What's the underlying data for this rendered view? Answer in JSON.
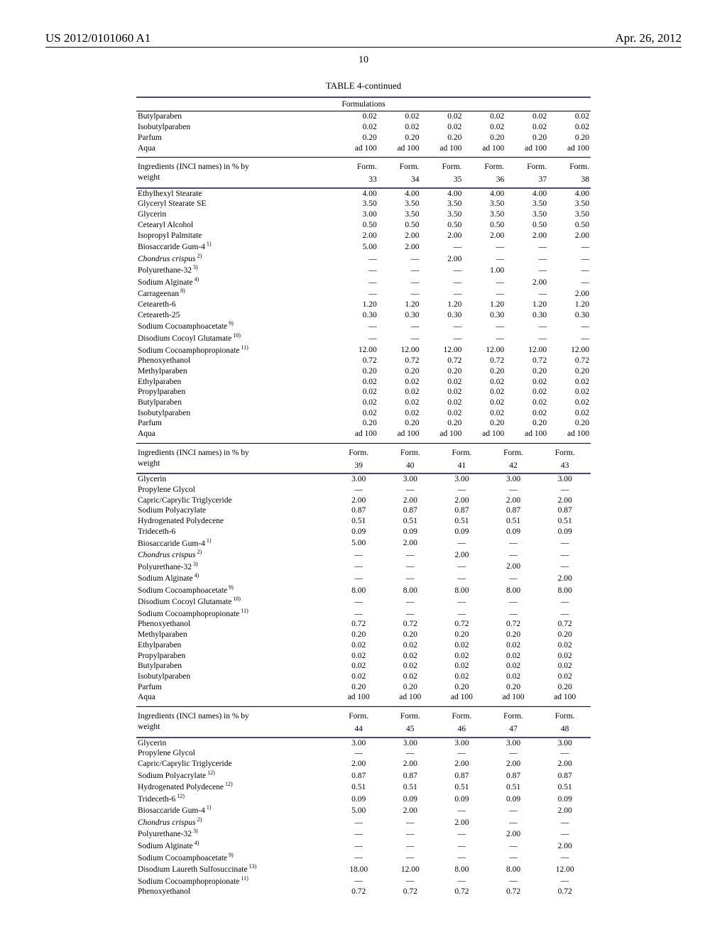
{
  "header": {
    "left": "US 2012/0101060 A1",
    "right": "Apr. 26, 2012",
    "page": "10"
  },
  "tableTitle": "TABLE 4-continued",
  "subheading": "Formulations",
  "labels": {
    "ingrHeader": "Ingredients (INCI names) in % by weight",
    "formPrefix": "Form."
  },
  "sec1": {
    "cols": 6,
    "rows": [
      {
        "n": "Butylparaben",
        "v": [
          "0.02",
          "0.02",
          "0.02",
          "0.02",
          "0.02",
          "0.02"
        ]
      },
      {
        "n": "Isobutylparaben",
        "v": [
          "0.02",
          "0.02",
          "0.02",
          "0.02",
          "0.02",
          "0.02"
        ]
      },
      {
        "n": "Parfum",
        "v": [
          "0.20",
          "0.20",
          "0.20",
          "0.20",
          "0.20",
          "0.20"
        ]
      },
      {
        "n": "Aqua",
        "v": [
          "ad 100",
          "ad 100",
          "ad 100",
          "ad 100",
          "ad 100",
          "ad 100"
        ]
      }
    ]
  },
  "sec2": {
    "forms": [
      "33",
      "34",
      "35",
      "36",
      "37",
      "38"
    ],
    "rows": [
      {
        "n": "Ethylhexyl Stearate",
        "v": [
          "4.00",
          "4.00",
          "4.00",
          "4.00",
          "4.00",
          "4.00"
        ]
      },
      {
        "n": "Glyceryl Stearate SE",
        "v": [
          "3.50",
          "3.50",
          "3.50",
          "3.50",
          "3.50",
          "3.50"
        ]
      },
      {
        "n": "Glycerin",
        "v": [
          "3.00",
          "3.50",
          "3.50",
          "3.50",
          "3.50",
          "3.50"
        ]
      },
      {
        "n": "Cetearyl Alcohol",
        "v": [
          "0.50",
          "0.50",
          "0.50",
          "0.50",
          "0.50",
          "0.50"
        ]
      },
      {
        "n": "Isopropyl Palmitate",
        "v": [
          "2.00",
          "2.00",
          "2.00",
          "2.00",
          "2.00",
          "2.00"
        ]
      },
      {
        "n": "Biosaccaride Gum-4",
        "sup": "1)",
        "v": [
          "5.00",
          "2.00",
          "—",
          "—",
          "—",
          "—"
        ]
      },
      {
        "n": "Chondrus crispus",
        "sup": "2)",
        "ital": true,
        "v": [
          "—",
          "—",
          "2.00",
          "—",
          "—",
          "—"
        ]
      },
      {
        "n": "Polyurethane-32",
        "sup": "3)",
        "v": [
          "—",
          "—",
          "—",
          "1.00",
          "—",
          "—"
        ]
      },
      {
        "n": "Sodium Alginate",
        "sup": "4)",
        "v": [
          "—",
          "—",
          "—",
          "—",
          "2.00",
          "—"
        ]
      },
      {
        "n": "Carrageenan",
        "sup": "8)",
        "v": [
          "—",
          "—",
          "—",
          "—",
          "—",
          "2.00"
        ]
      },
      {
        "n": "Ceteareth-6",
        "v": [
          "1.20",
          "1.20",
          "1.20",
          "1.20",
          "1.20",
          "1.20"
        ]
      },
      {
        "n": "Ceteareth-25",
        "v": [
          "0.30",
          "0.30",
          "0.30",
          "0.30",
          "0.30",
          "0.30"
        ]
      },
      {
        "n": "Sodium Cocoamphoacetate",
        "sup": "9)",
        "v": [
          "—",
          "—",
          "—",
          "—",
          "—",
          "—"
        ]
      },
      {
        "n": "Disodium Cocoyl Glutamate",
        "sup": "10)",
        "v": [
          "—",
          "—",
          "—",
          "—",
          "—",
          "—"
        ]
      },
      {
        "n": "Sodium Cocoamphopropionate",
        "sup": "11)",
        "v": [
          "12.00",
          "12.00",
          "12.00",
          "12.00",
          "12.00",
          "12.00"
        ]
      },
      {
        "n": "Phenoxyethanol",
        "v": [
          "0.72",
          "0.72",
          "0.72",
          "0.72",
          "0.72",
          "0.72"
        ]
      },
      {
        "n": "Methylparaben",
        "v": [
          "0.20",
          "0.20",
          "0.20",
          "0.20",
          "0.20",
          "0.20"
        ]
      },
      {
        "n": "Ethylparaben",
        "v": [
          "0.02",
          "0.02",
          "0.02",
          "0.02",
          "0.02",
          "0.02"
        ]
      },
      {
        "n": "Propylparaben",
        "v": [
          "0.02",
          "0.02",
          "0.02",
          "0.02",
          "0.02",
          "0.02"
        ]
      },
      {
        "n": "Butylparaben",
        "v": [
          "0.02",
          "0.02",
          "0.02",
          "0.02",
          "0.02",
          "0.02"
        ]
      },
      {
        "n": "Isobutylparaben",
        "v": [
          "0.02",
          "0.02",
          "0.02",
          "0.02",
          "0.02",
          "0.02"
        ]
      },
      {
        "n": "Parfum",
        "v": [
          "0.20",
          "0.20",
          "0.20",
          "0.20",
          "0.20",
          "0.20"
        ]
      },
      {
        "n": "Aqua",
        "v": [
          "ad 100",
          "ad 100",
          "ad 100",
          "ad 100",
          "ad 100",
          "ad 100"
        ]
      }
    ]
  },
  "sec3": {
    "forms": [
      "39",
      "40",
      "41",
      "42",
      "43"
    ],
    "rows": [
      {
        "n": "Glycerin",
        "v": [
          "3.00",
          "3.00",
          "3.00",
          "3.00",
          "3.00"
        ]
      },
      {
        "n": "Propylene Glycol",
        "v": [
          "—",
          "—",
          "—",
          "—",
          "—"
        ]
      },
      {
        "n": "Capric/Caprylic Triglyceride",
        "v": [
          "2.00",
          "2.00",
          "2.00",
          "2.00",
          "2.00"
        ]
      },
      {
        "n": "Sodium Polyacrylate",
        "v": [
          "0.87",
          "0.87",
          "0.87",
          "0.87",
          "0.87"
        ]
      },
      {
        "n": "Hydrogenated Polydecene",
        "v": [
          "0.51",
          "0.51",
          "0.51",
          "0.51",
          "0.51"
        ]
      },
      {
        "n": "Trideceth-6",
        "v": [
          "0.09",
          "0.09",
          "0.09",
          "0.09",
          "0.09"
        ]
      },
      {
        "n": "Biosaccaride Gum-4",
        "sup": "1)",
        "v": [
          "5.00",
          "2.00",
          "—",
          "—",
          "—"
        ]
      },
      {
        "n": "Chondrus crispus",
        "sup": "2)",
        "ital": true,
        "v": [
          "—",
          "—",
          "2.00",
          "—",
          "—"
        ]
      },
      {
        "n": "Polyurethane-32",
        "sup": "3)",
        "v": [
          "—",
          "—",
          "—",
          "2.00",
          "—"
        ]
      },
      {
        "n": "Sodium Alginate",
        "sup": "4)",
        "v": [
          "—",
          "—",
          "—",
          "—",
          "2.00"
        ]
      },
      {
        "n": "Sodium Cocoamphoacetate",
        "sup": "9)",
        "v": [
          "8.00",
          "8.00",
          "8.00",
          "8.00",
          "8.00"
        ]
      },
      {
        "n": "Disodium Cocoyl Glutamate",
        "sup": "10)",
        "v": [
          "—",
          "—",
          "—",
          "—",
          "—"
        ]
      },
      {
        "n": "Sodium Cocoamphopropionate",
        "sup": "11)",
        "v": [
          "—",
          "—",
          "—",
          "—",
          "—"
        ]
      },
      {
        "n": "Phenoxyethanol",
        "v": [
          "0.72",
          "0.72",
          "0.72",
          "0.72",
          "0.72"
        ]
      },
      {
        "n": "Methylparaben",
        "v": [
          "0.20",
          "0.20",
          "0.20",
          "0.20",
          "0.20"
        ]
      },
      {
        "n": "Ethylparaben",
        "v": [
          "0.02",
          "0.02",
          "0.02",
          "0.02",
          "0.02"
        ]
      },
      {
        "n": "Propylparaben",
        "v": [
          "0.02",
          "0.02",
          "0.02",
          "0.02",
          "0.02"
        ]
      },
      {
        "n": "Butylparaben",
        "v": [
          "0.02",
          "0.02",
          "0.02",
          "0.02",
          "0.02"
        ]
      },
      {
        "n": "Isobutylparaben",
        "v": [
          "0.02",
          "0.02",
          "0.02",
          "0.02",
          "0.02"
        ]
      },
      {
        "n": "Parfum",
        "v": [
          "0.20",
          "0.20",
          "0.20",
          "0.20",
          "0.20"
        ]
      },
      {
        "n": "Aqua",
        "v": [
          "ad 100",
          "ad 100",
          "ad 100",
          "ad 100",
          "ad 100"
        ]
      }
    ]
  },
  "sec4": {
    "forms": [
      "44",
      "45",
      "46",
      "47",
      "48"
    ],
    "rows": [
      {
        "n": "Glycerin",
        "v": [
          "3.00",
          "3.00",
          "3.00",
          "3.00",
          "3.00"
        ]
      },
      {
        "n": "Propylene Glycol",
        "v": [
          "—",
          "—",
          "—",
          "—",
          "—"
        ]
      },
      {
        "n": "Capric/Caprylic Triglyceride",
        "v": [
          "2.00",
          "2.00",
          "2.00",
          "2.00",
          "2.00"
        ]
      },
      {
        "n": "Sodium Polyacrylate",
        "sup": "12)",
        "v": [
          "0.87",
          "0.87",
          "0.87",
          "0.87",
          "0.87"
        ]
      },
      {
        "n": "Hydrogenated Polydecene",
        "sup": "12)",
        "v": [
          "0.51",
          "0.51",
          "0.51",
          "0.51",
          "0.51"
        ]
      },
      {
        "n": "Trideceth-6",
        "sup": "12)",
        "v": [
          "0.09",
          "0.09",
          "0.09",
          "0.09",
          "0.09"
        ]
      },
      {
        "n": "Biosaccaride Gum-4",
        "sup": "1)",
        "v": [
          "5.00",
          "2.00",
          "—",
          "—",
          "2.00"
        ]
      },
      {
        "n": "Chondrus crispus",
        "sup": "2)",
        "ital": true,
        "v": [
          "—",
          "—",
          "2.00",
          "—",
          "—"
        ]
      },
      {
        "n": "Polyurethane-32",
        "sup": "3)",
        "v": [
          "—",
          "—",
          "—",
          "2.00",
          "—"
        ]
      },
      {
        "n": "Sodium Alginate",
        "sup": "4)",
        "v": [
          "—",
          "—",
          "—",
          "—",
          "2.00"
        ]
      },
      {
        "n": "Sodium Cocoamphoacetate",
        "sup": "9)",
        "v": [
          "—",
          "—",
          "—",
          "—",
          "—"
        ]
      },
      {
        "n": "Disodium Laureth Sulfosuccinate",
        "sup": "13)",
        "v": [
          "18.00",
          "12.00",
          "8.00",
          "8.00",
          "12.00"
        ]
      },
      {
        "n": "Sodium Cocoamphopropionate",
        "sup": "11)",
        "v": [
          "—",
          "—",
          "—",
          "—",
          "—"
        ]
      },
      {
        "n": "Phenoxyethanol",
        "v": [
          "0.72",
          "0.72",
          "0.72",
          "0.72",
          "0.72"
        ]
      }
    ]
  }
}
